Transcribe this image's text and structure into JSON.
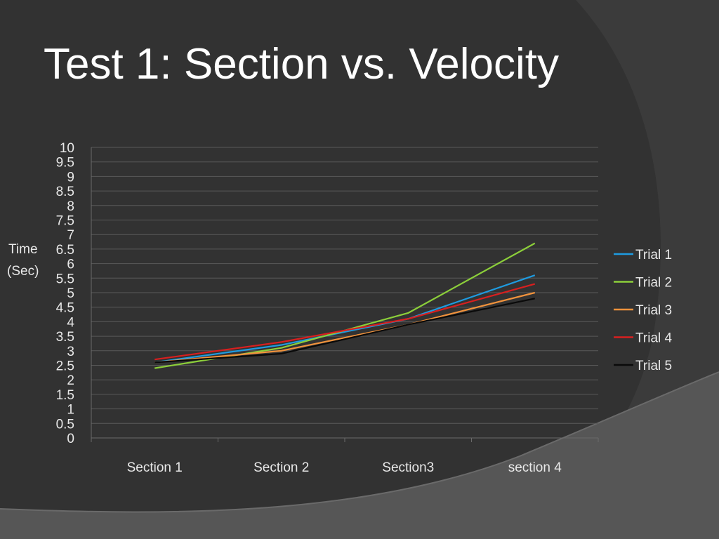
{
  "slide": {
    "title": "Test 1: Section vs. Velocity"
  },
  "colors": {
    "background": "#3b3b3b",
    "panel_dark": "#2f2f2f",
    "swoosh": "#555555",
    "text": "#ffffff",
    "chart_text": "#e8e8e8",
    "gridline": "#5a5a5a"
  },
  "chart_data": {
    "type": "line",
    "title": "",
    "xlabel": "",
    "ylabel_lines": [
      "Time",
      "(Sec)"
    ],
    "categories": [
      "Section 1",
      "Section 2",
      "Section3",
      "section 4"
    ],
    "ylim": [
      0,
      10
    ],
    "ytick_step": 0.5,
    "grid": true,
    "legend_position": "right",
    "series": [
      {
        "name": "Trial 1",
        "color": "#1e9be0",
        "values": [
          2.6,
          3.2,
          4.1,
          5.6
        ]
      },
      {
        "name": "Trial 2",
        "color": "#8ccf3a",
        "values": [
          2.4,
          3.1,
          4.3,
          6.7
        ]
      },
      {
        "name": "Trial 3",
        "color": "#f0923c",
        "values": [
          2.6,
          3.0,
          3.9,
          5.0
        ]
      },
      {
        "name": "Trial 4",
        "color": "#d81f1f",
        "values": [
          2.7,
          3.3,
          4.1,
          5.3
        ]
      },
      {
        "name": "Trial 5",
        "color": "#0a0a0a",
        "values": [
          2.6,
          2.9,
          3.9,
          4.8
        ]
      }
    ]
  }
}
